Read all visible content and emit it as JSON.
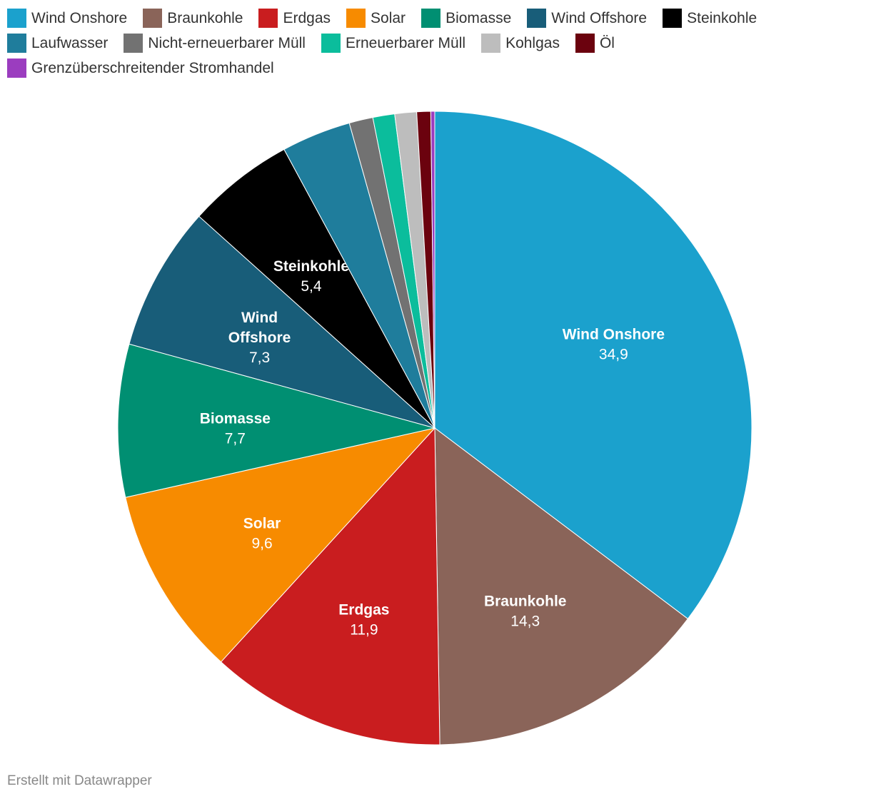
{
  "chart_data": {
    "type": "pie",
    "title": "",
    "legend_placement": "top",
    "slices": [
      {
        "label": "Wind Onshore",
        "value": 34.9,
        "display": "34,9",
        "color": "#1ba1cd"
      },
      {
        "label": "Braunkohle",
        "value": 14.3,
        "display": "14,3",
        "color": "#8a6459"
      },
      {
        "label": "Erdgas",
        "value": 11.9,
        "display": "11,9",
        "color": "#c91d1f"
      },
      {
        "label": "Solar",
        "value": 9.6,
        "display": "9,6",
        "color": "#f78b00"
      },
      {
        "label": "Biomasse",
        "value": 7.7,
        "display": "7,7",
        "color": "#008f72"
      },
      {
        "label": "Wind Offshore",
        "value": 7.3,
        "display": "7,3",
        "color": "#185d79",
        "label_lines": [
          "Wind",
          "Offshore"
        ]
      },
      {
        "label": "Steinkohle",
        "value": 5.4,
        "display": "5,4",
        "color": "#000000"
      },
      {
        "label": "Laufwasser",
        "value": 3.5,
        "color": "#1f7d9c"
      },
      {
        "label": "Nicht-erneuerbarer Müll",
        "value": 1.2,
        "color": "#727272"
      },
      {
        "label": "Erneuerbarer Müll",
        "value": 1.1,
        "color": "#0bbd9c"
      },
      {
        "label": "Kohlgas",
        "value": 1.1,
        "color": "#bdbdbd"
      },
      {
        "label": "Öl",
        "value": 0.7,
        "color": "#6b020e"
      },
      {
        "label": "Grenzüberschreitender Stromhandel",
        "value": 0.2,
        "color": "#9b3dbf"
      }
    ]
  },
  "footer": "Erstellt mit Datawrapper"
}
